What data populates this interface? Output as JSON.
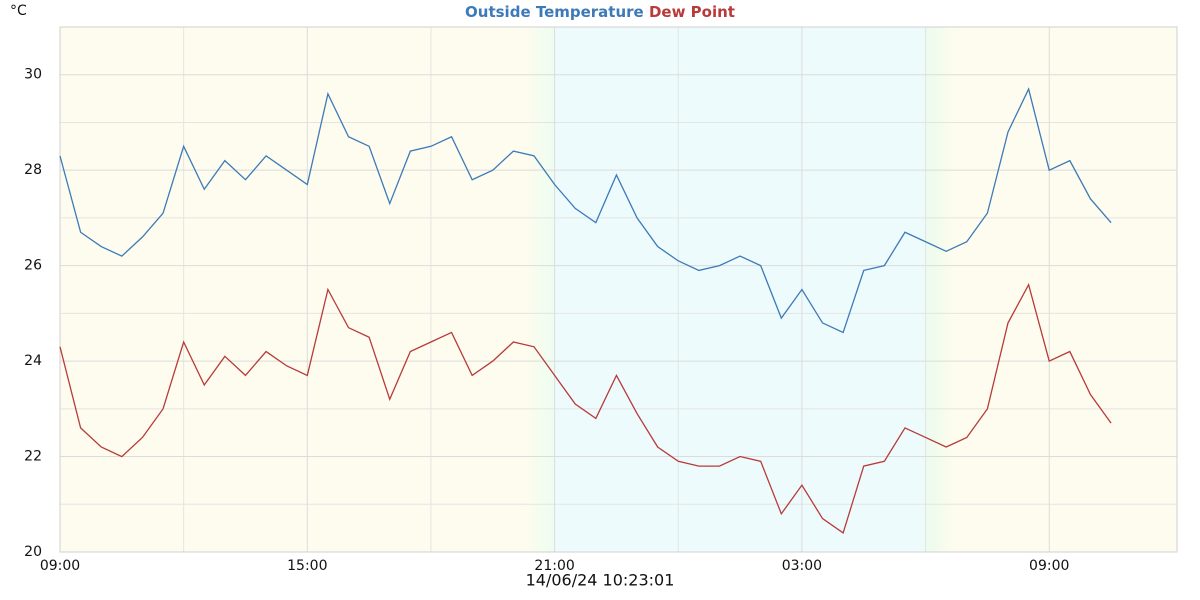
{
  "chart_data": {
    "type": "line",
    "y_unit": "°C",
    "footer": "14/06/24 10:23:01",
    "x": [
      0,
      0.5,
      1,
      1.5,
      2,
      2.5,
      3,
      3.5,
      4,
      4.5,
      5,
      5.5,
      6,
      6.5,
      7,
      7.5,
      8,
      8.5,
      9,
      9.5,
      10,
      10.5,
      11,
      11.5,
      12,
      12.5,
      13,
      13.5,
      14,
      14.5,
      15,
      15.5,
      16,
      16.5,
      17,
      17.5,
      18,
      18.5,
      19,
      19.5,
      20,
      20.5,
      21,
      21.5,
      22,
      22.5,
      23,
      23.5,
      24,
      24.5,
      25,
      25.5
    ],
    "series": [
      {
        "name": "Outside Temperature",
        "color": "#3d7ab8",
        "values": [
          28.3,
          26.7,
          26.4,
          26.2,
          26.6,
          27.1,
          28.5,
          27.6,
          28.2,
          27.8,
          28.3,
          28.0,
          27.7,
          29.6,
          28.7,
          28.5,
          27.3,
          28.4,
          28.5,
          28.7,
          27.8,
          28.0,
          28.4,
          28.3,
          27.7,
          27.2,
          26.9,
          27.9,
          27.0,
          26.4,
          26.1,
          25.9,
          26.0,
          26.2,
          26.0,
          24.9,
          25.5,
          24.8,
          24.6,
          25.9,
          26.0,
          26.7,
          26.5,
          26.3,
          26.5,
          27.1,
          28.8,
          29.7,
          28.0,
          28.2,
          27.4,
          26.9
        ]
      },
      {
        "name": "Dew Point",
        "color": "#b83a3a",
        "values": [
          24.3,
          22.6,
          22.2,
          22.0,
          22.4,
          23.0,
          24.4,
          23.5,
          24.1,
          23.7,
          24.2,
          23.9,
          23.7,
          25.5,
          24.7,
          24.5,
          23.2,
          24.2,
          24.4,
          24.6,
          23.7,
          24.0,
          24.4,
          24.3,
          23.7,
          23.1,
          22.8,
          23.7,
          22.9,
          22.2,
          21.9,
          21.8,
          21.8,
          22.0,
          21.9,
          20.8,
          21.4,
          20.7,
          20.4,
          21.8,
          21.9,
          22.6,
          22.4,
          22.2,
          22.4,
          23.0,
          24.8,
          25.6,
          24.0,
          24.2,
          23.3,
          22.7
        ]
      }
    ],
    "xlim": [
      0,
      27.1
    ],
    "xticks": [
      {
        "value": 0,
        "label": "09:00"
      },
      {
        "value": 6,
        "label": "15:00"
      },
      {
        "value": 12,
        "label": "21:00"
      },
      {
        "value": 18,
        "label": "03:00"
      },
      {
        "value": 24,
        "label": "09:00"
      }
    ],
    "minor_xticks": [
      3,
      9,
      15,
      21
    ],
    "ylim": [
      20,
      31
    ],
    "yticks": [
      20,
      22,
      24,
      26,
      28,
      30
    ],
    "minor_yticks": [
      21,
      23,
      25,
      27,
      29
    ],
    "grid": true
  }
}
